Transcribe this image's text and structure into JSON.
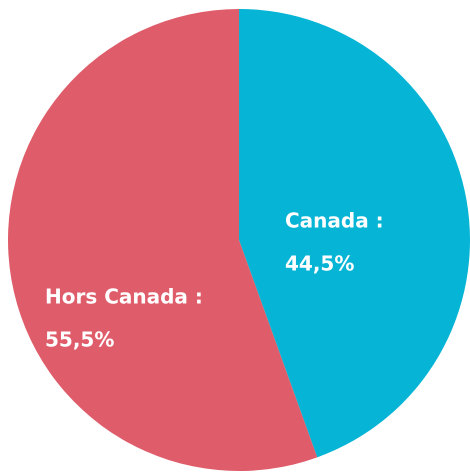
{
  "chart_data": {
    "type": "pie",
    "categories": [
      "Canada :",
      "Hors Canada :"
    ],
    "values": [
      44.5,
      55.5
    ],
    "value_labels": [
      "44,5%",
      "55,5%"
    ],
    "colors": [
      "#06b4d5",
      "#df5d6a"
    ]
  }
}
